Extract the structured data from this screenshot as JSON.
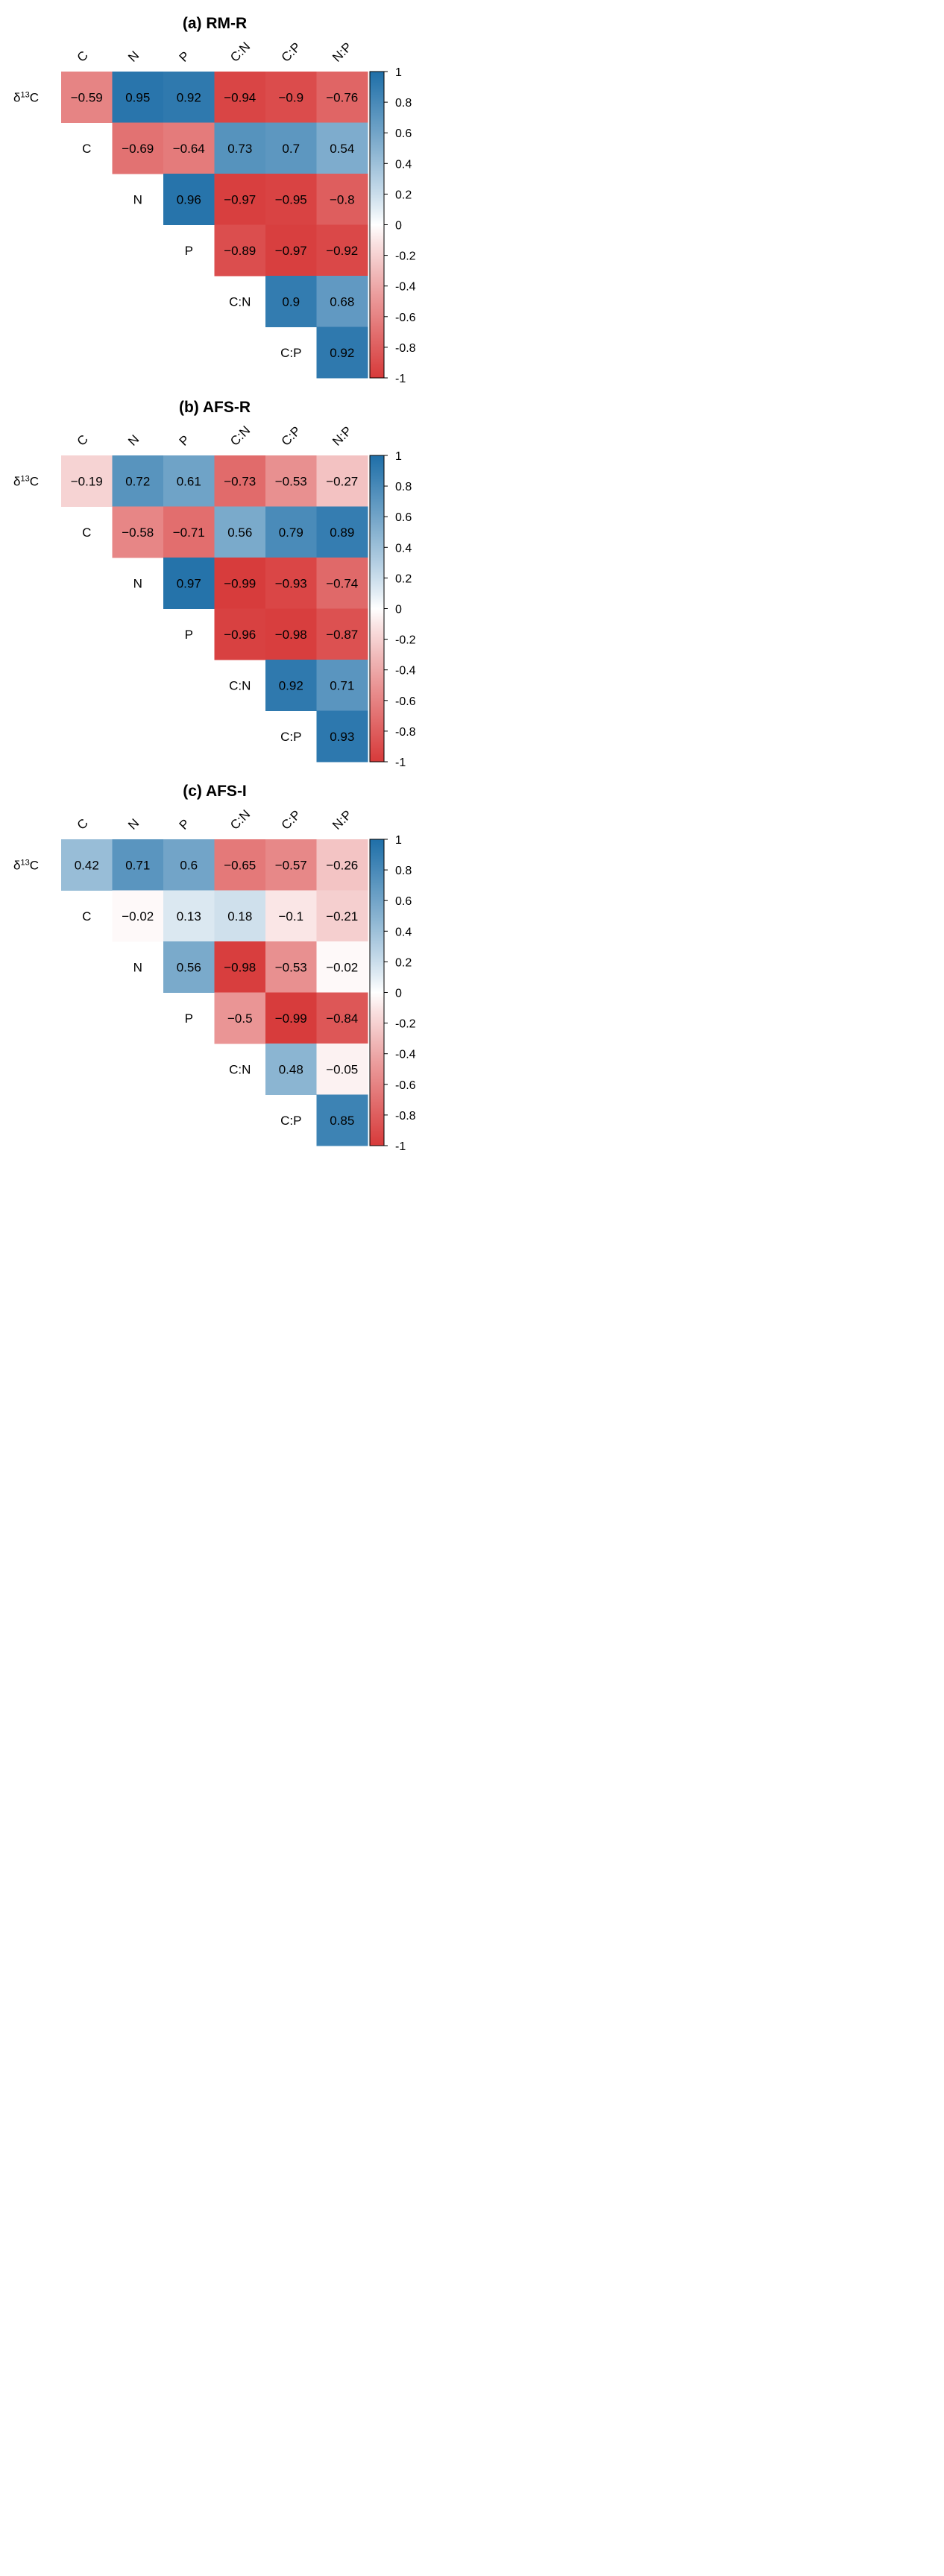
{
  "chart_data": [
    {
      "type": "heatmap",
      "title": "(a) RM-R",
      "row_labels": [
        "δ13C",
        "C",
        "N",
        "P",
        "C:N",
        "C:P"
      ],
      "col_labels": [
        "C",
        "N",
        "P",
        "C:N",
        "C:P",
        "N:P"
      ],
      "values": [
        [
          -0.59,
          0.95,
          0.92,
          -0.94,
          -0.9,
          -0.76
        ],
        [
          null,
          -0.69,
          -0.64,
          0.73,
          0.7,
          0.54
        ],
        [
          null,
          null,
          0.96,
          -0.97,
          -0.95,
          -0.8
        ],
        [
          null,
          null,
          null,
          -0.89,
          -0.97,
          -0.92
        ],
        [
          null,
          null,
          null,
          null,
          0.9,
          0.68
        ],
        [
          null,
          null,
          null,
          null,
          null,
          0.92
        ]
      ],
      "colorbar": {
        "range": [
          -1,
          1
        ],
        "ticks": [
          "1",
          "0.8",
          "0.6",
          "0.4",
          "0.2",
          "0",
          "-0.2",
          "-0.4",
          "-0.6",
          "-0.8",
          "-1"
        ]
      }
    },
    {
      "type": "heatmap",
      "title": "(b) AFS-R",
      "row_labels": [
        "δ13C",
        "C",
        "N",
        "P",
        "C:N",
        "C:P"
      ],
      "col_labels": [
        "C",
        "N",
        "P",
        "C:N",
        "C:P",
        "N:P"
      ],
      "values": [
        [
          -0.19,
          0.72,
          0.61,
          -0.73,
          -0.53,
          -0.27
        ],
        [
          null,
          -0.58,
          -0.71,
          0.56,
          0.79,
          0.89
        ],
        [
          null,
          null,
          0.97,
          -0.99,
          -0.93,
          -0.74
        ],
        [
          null,
          null,
          null,
          -0.96,
          -0.98,
          -0.87
        ],
        [
          null,
          null,
          null,
          null,
          0.92,
          0.71
        ],
        [
          null,
          null,
          null,
          null,
          null,
          0.93
        ]
      ],
      "colorbar": {
        "range": [
          -1,
          1
        ],
        "ticks": [
          "1",
          "0.8",
          "0.6",
          "0.4",
          "0.2",
          "0",
          "-0.2",
          "-0.4",
          "-0.6",
          "-0.8",
          "-1"
        ]
      }
    },
    {
      "type": "heatmap",
      "title": "(c) AFS-I",
      "row_labels": [
        "δ13C",
        "C",
        "N",
        "P",
        "C:N",
        "C:P"
      ],
      "col_labels": [
        "C",
        "N",
        "P",
        "C:N",
        "C:P",
        "N:P"
      ],
      "values": [
        [
          0.42,
          0.71,
          0.6,
          -0.65,
          -0.57,
          -0.26
        ],
        [
          null,
          -0.02,
          0.13,
          0.18,
          -0.1,
          -0.21
        ],
        [
          null,
          null,
          0.56,
          -0.98,
          -0.53,
          -0.02
        ],
        [
          null,
          null,
          null,
          -0.5,
          -0.99,
          -0.84
        ],
        [
          null,
          null,
          null,
          null,
          0.48,
          -0.05
        ],
        [
          null,
          null,
          null,
          null,
          null,
          0.85
        ]
      ],
      "colorbar": {
        "range": [
          -1,
          1
        ],
        "ticks": [
          "1",
          "0.8",
          "0.6",
          "0.4",
          "0.2",
          "0",
          "-0.2",
          "-0.4",
          "-0.6",
          "-0.8",
          "-1"
        ]
      }
    }
  ],
  "colors": {
    "positive": "#1f6fa8",
    "negative": "#d73a3a",
    "neutral": "#ffffff"
  }
}
